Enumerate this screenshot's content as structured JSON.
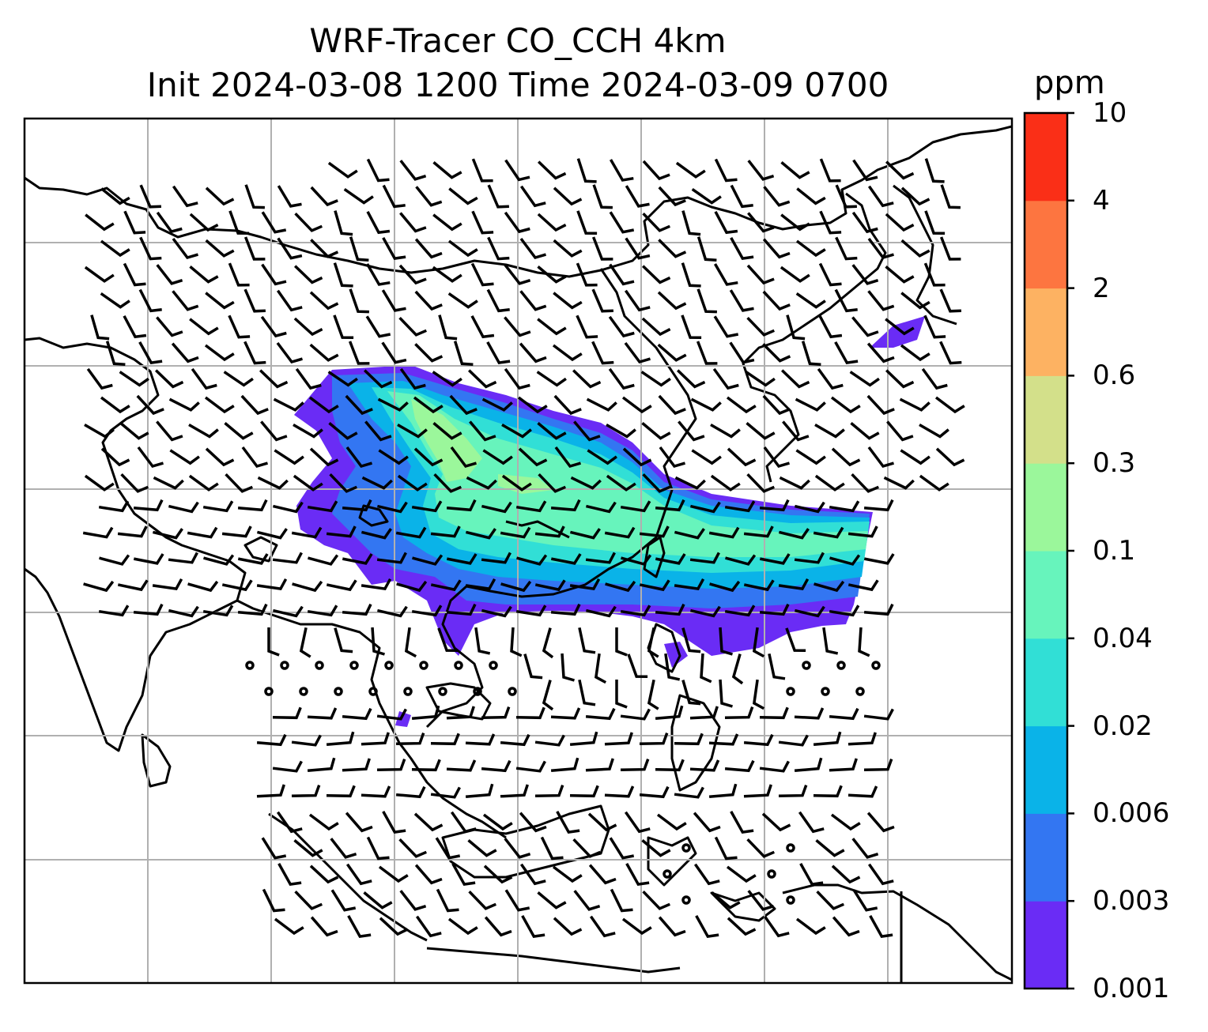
{
  "title": {
    "line1": "WRF-Tracer CO_CCH 4km",
    "line2": "Init 2024-03-08 1200 Time 2024-03-09 0700"
  },
  "colorbar": {
    "unit": "ppm",
    "ticks": [
      "0.001",
      "0.003",
      "0.006",
      "0.02",
      "0.04",
      "0.1",
      "0.3",
      "0.6",
      "2",
      "4",
      "10"
    ],
    "colors": [
      "#6a2cf5",
      "#3376f2",
      "#0ab3e8",
      "#31dfd6",
      "#67f4bc",
      "#9bf79b",
      "#d3e08a",
      "#fdb262",
      "#fd7540",
      "#fa2f17"
    ]
  },
  "map": {
    "field": "CO_CCH tracer concentration",
    "gridlines": true,
    "wind_barbs": true
  }
}
